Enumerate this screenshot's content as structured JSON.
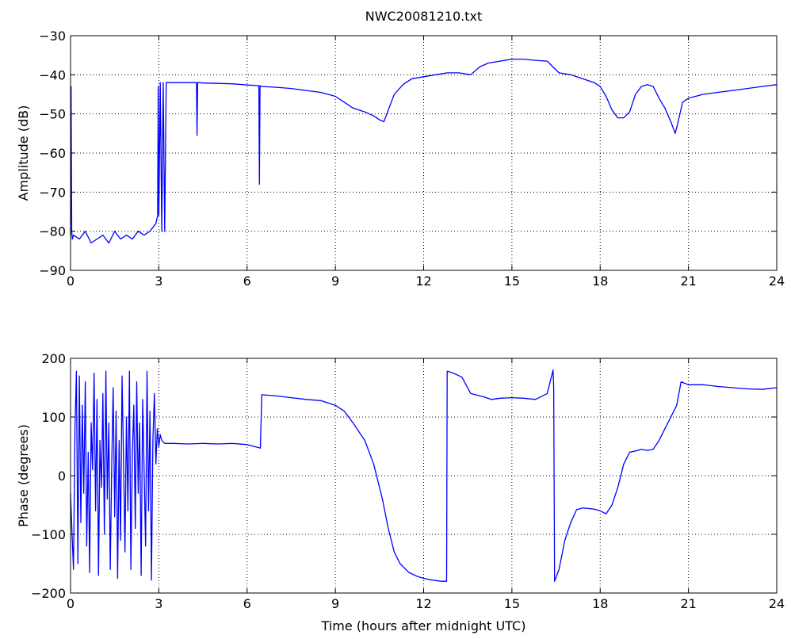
{
  "chart_data": [
    {
      "type": "line",
      "title": "NWC20081210.txt",
      "xlabel": "",
      "ylabel": "Amplitude (dB)",
      "xlim": [
        0,
        24
      ],
      "ylim": [
        -90,
        -30
      ],
      "xticks": [
        "0",
        "3",
        "6",
        "9",
        "12",
        "15",
        "18",
        "21",
        "24"
      ],
      "yticks": [
        "−30",
        "−40",
        "−50",
        "−60",
        "−70",
        "−80",
        "−90"
      ],
      "grid": true,
      "line_color": "#0000ff",
      "series": [
        {
          "x": [
            0,
            0.02,
            0.04,
            0.06,
            0.1,
            0.3,
            0.5,
            0.7,
            0.9,
            1.1,
            1.3,
            1.5,
            1.7,
            1.9,
            2.1,
            2.3,
            2.5,
            2.7,
            2.9,
            2.96,
            2.98,
            3.0,
            3.05,
            3.1,
            3.15,
            3.2,
            3.25,
            3.3,
            3.4,
            3.6,
            4.0,
            4.28,
            4.3,
            4.32,
            4.5,
            5.0,
            5.5,
            6.0,
            6.4,
            6.42,
            6.44,
            6.5,
            7.0,
            7.5,
            8.0,
            8.5,
            9.0,
            9.3,
            9.6,
            10.0,
            10.3,
            10.5,
            10.65,
            10.8,
            11.0,
            11.3,
            11.6,
            12.0,
            12.4,
            12.8,
            13.2,
            13.6,
            13.9,
            14.2,
            14.6,
            15.0,
            15.4,
            15.8,
            16.2,
            16.4,
            16.6,
            17.0,
            17.4,
            17.8,
            18.0,
            18.2,
            18.4,
            18.6,
            18.8,
            19.0,
            19.2,
            19.4,
            19.6,
            19.8,
            20.0,
            20.2,
            20.4,
            20.55,
            20.65,
            20.8,
            21.0,
            21.5,
            22.0,
            22.5,
            23.0,
            23.5,
            24.0
          ],
          "y": [
            -81,
            -43,
            -80,
            -82,
            -81,
            -82,
            -80,
            -83,
            -82,
            -81,
            -83,
            -80,
            -82,
            -81,
            -82,
            -80,
            -81,
            -80,
            -78,
            -76,
            -43,
            -76,
            -42,
            -80,
            -42,
            -80,
            -42,
            -42,
            -42,
            -42,
            -42,
            -42,
            -55.5,
            -42,
            -42.1,
            -42.2,
            -42.3,
            -42.6,
            -42.8,
            -68,
            -42.8,
            -43,
            -43.2,
            -43.5,
            -44,
            -44.5,
            -45.5,
            -47,
            -48.5,
            -49.5,
            -50.5,
            -51.5,
            -52,
            -49,
            -45,
            -42.5,
            -41,
            -40.5,
            -40,
            -39.5,
            -39.5,
            -40,
            -38,
            -37,
            -36.5,
            -36,
            -36,
            -36.3,
            -36.5,
            -38,
            -39.5,
            -40,
            -41,
            -42,
            -43,
            -45.5,
            -49,
            -51,
            -51,
            -49.5,
            -45,
            -43,
            -42.5,
            -43,
            -46,
            -48.5,
            -52,
            -55,
            -52,
            -47,
            -46,
            -45,
            -44.5,
            -44,
            -43.5,
            -43,
            -42.5
          ]
        }
      ]
    },
    {
      "type": "line",
      "title": "",
      "xlabel": "Time (hours after midnight UTC)",
      "ylabel": "Phase (degrees)",
      "xlim": [
        0,
        24
      ],
      "ylim": [
        -200,
        200
      ],
      "xticks": [
        "0",
        "3",
        "6",
        "9",
        "12",
        "15",
        "18",
        "21",
        "24"
      ],
      "yticks": [
        "200",
        "100",
        "0",
        "−100",
        "−200"
      ],
      "grid": true,
      "line_color": "#0000ff",
      "series": [
        {
          "x": [
            0,
            0.05,
            0.1,
            0.15,
            0.2,
            0.25,
            0.3,
            0.35,
            0.4,
            0.45,
            0.5,
            0.55,
            0.6,
            0.65,
            0.7,
            0.75,
            0.8,
            0.85,
            0.9,
            0.95,
            1.0,
            1.05,
            1.1,
            1.15,
            1.2,
            1.25,
            1.3,
            1.35,
            1.4,
            1.45,
            1.5,
            1.55,
            1.6,
            1.65,
            1.7,
            1.75,
            1.8,
            1.85,
            1.9,
            1.95,
            2.0,
            2.05,
            2.1,
            2.15,
            2.2,
            2.25,
            2.3,
            2.35,
            2.4,
            2.45,
            2.5,
            2.55,
            2.6,
            2.65,
            2.7,
            2.75,
            2.8,
            2.85,
            2.9,
            2.95,
            3.0,
            3.05,
            3.1,
            3.2,
            3.5,
            4.0,
            4.5,
            5.0,
            5.5,
            6.0,
            6.45,
            6.5,
            7.0,
            7.5,
            8.0,
            8.5,
            9.0,
            9.3,
            9.6,
            10.0,
            10.3,
            10.6,
            10.8,
            11.0,
            11.2,
            11.5,
            11.8,
            12.0,
            12.3,
            12.6,
            12.78,
            12.8,
            12.82,
            13.0,
            13.3,
            13.6,
            14.0,
            14.3,
            14.6,
            15.0,
            15.4,
            15.8,
            16.2,
            16.4,
            16.42,
            16.45,
            16.6,
            16.8,
            17.0,
            17.2,
            17.4,
            17.6,
            17.8,
            18.0,
            18.2,
            18.4,
            18.6,
            18.8,
            19.0,
            19.2,
            19.4,
            19.6,
            19.8,
            20.0,
            20.2,
            20.4,
            20.6,
            20.75,
            21.0,
            21.5,
            22.0,
            22.5,
            23.0,
            23.5,
            24.0
          ],
          "y": [
            -30,
            -100,
            -160,
            80,
            178,
            -150,
            170,
            -80,
            120,
            -30,
            160,
            -120,
            40,
            -165,
            90,
            10,
            175,
            -60,
            130,
            -170,
            60,
            -20,
            140,
            -100,
            178,
            -40,
            90,
            -160,
            20,
            150,
            -70,
            110,
            -175,
            60,
            -110,
            170,
            30,
            -130,
            100,
            -60,
            178,
            -160,
            40,
            120,
            -90,
            160,
            -30,
            90,
            -170,
            130,
            10,
            -120,
            178,
            -60,
            110,
            -178,
            60,
            140,
            20,
            80,
            50,
            70,
            60,
            55,
            55,
            54,
            55,
            54,
            55,
            53,
            47,
            138,
            136,
            133,
            130,
            128,
            120,
            110,
            90,
            60,
            20,
            -40,
            -90,
            -130,
            -150,
            -165,
            -172,
            -175,
            -178,
            -180,
            -180,
            178,
            178,
            175,
            168,
            140,
            135,
            130,
            132,
            133,
            132,
            130,
            140,
            180,
            150,
            -180,
            -160,
            -110,
            -80,
            -58,
            -55,
            -56,
            -57,
            -60,
            -65,
            -50,
            -20,
            20,
            40,
            42,
            45,
            43,
            45,
            60,
            80,
            100,
            120,
            160,
            155,
            155,
            152,
            150,
            148,
            147,
            150
          ]
        }
      ]
    }
  ]
}
